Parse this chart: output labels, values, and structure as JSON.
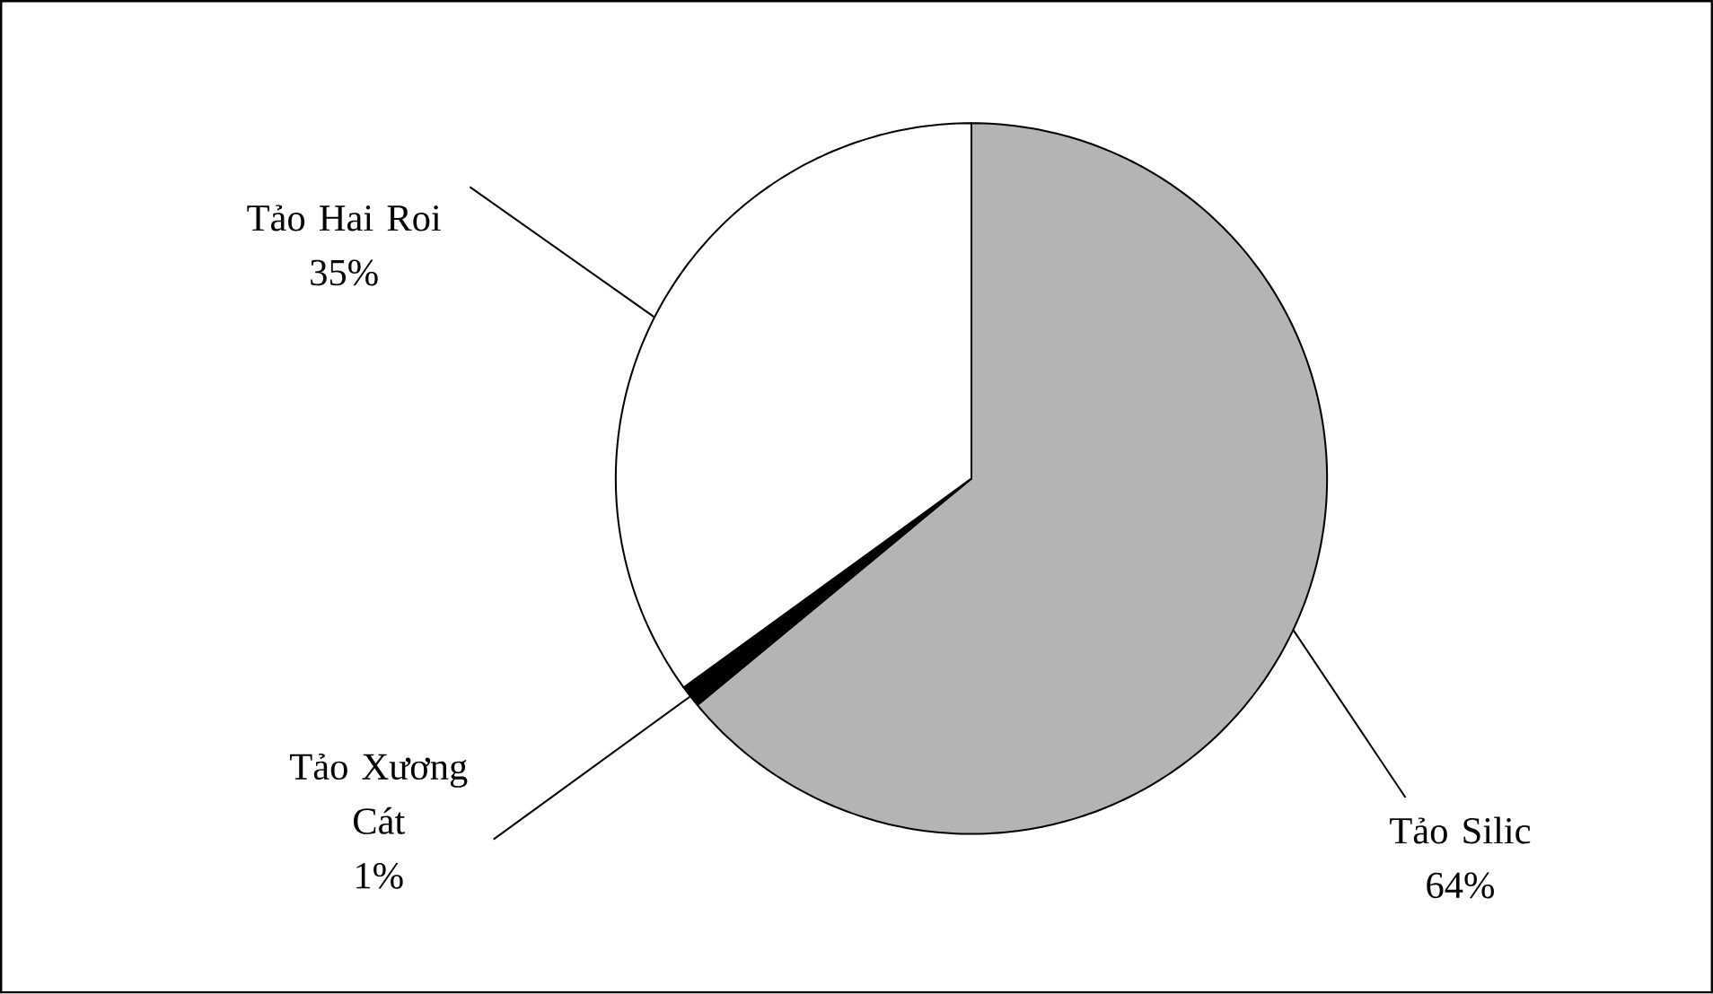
{
  "chart_data": {
    "type": "pie",
    "categories": [
      "Tảo Silic",
      "Tảo Xương Cát",
      "Tảo Hai Roi"
    ],
    "values": [
      64,
      1,
      35
    ],
    "colors": [
      "#b4b4b4",
      "#000000",
      "#ffffff"
    ],
    "value_labels": [
      "64%",
      "1%",
      "35%"
    ]
  }
}
